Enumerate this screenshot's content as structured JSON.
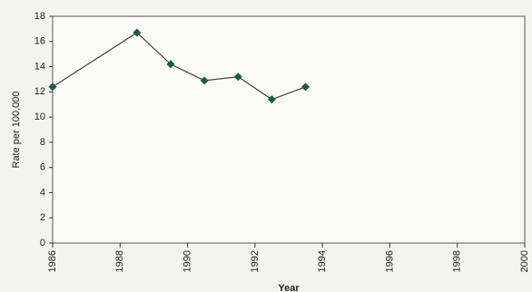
{
  "chart_data": {
    "type": "line",
    "x_label": "Year",
    "y_label": "Rate per 100,000",
    "x": [
      1986,
      1988.5,
      1989.5,
      1990.5,
      1991.5,
      1992.5,
      1993.5
    ],
    "series": [
      {
        "color": "#1d5b3c",
        "values": [
          12.4,
          16.7,
          14.2,
          12.9,
          13.2,
          11.4,
          12.4
        ]
      }
    ],
    "xlim": [
      1986,
      2000
    ],
    "xticks": [
      1986,
      1988,
      1990,
      1992,
      1994,
      1996,
      1998,
      2000
    ],
    "ylim": [
      0,
      18
    ],
    "yticks": [
      0,
      2,
      4,
      6,
      8,
      10,
      12,
      14,
      16,
      18
    ]
  }
}
